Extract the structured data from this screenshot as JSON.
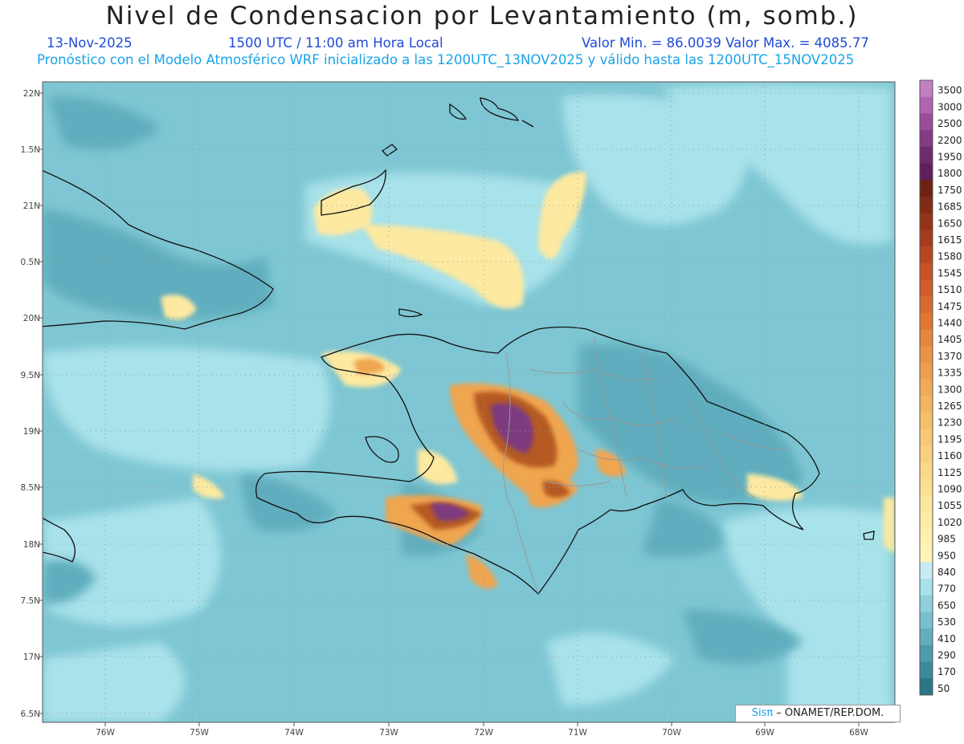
{
  "header": {
    "title": "Nivel de Condensacion por Levantamiento (m, somb.)",
    "date": "13-Nov-2025",
    "time": "1500 UTC / 11:00 am Hora Local",
    "minmax": "Valor Min. = 86.0039  Valor Max. = 4085.77",
    "subtitle": "Pronóstico con el Modelo Atmosférico WRF inicializado a las 1200UTC_13NOV2025 y válido hasta las  1200UTC_15NOV2025"
  },
  "map": {
    "lat_labels": [
      "22N",
      "1.5N",
      "21N",
      "0.5N",
      "20N",
      "9.5N",
      "19N",
      "8.5N",
      "18N",
      "7.5N",
      "17N",
      "6.5N"
    ],
    "lon_labels": [
      "76W",
      "75W",
      "74W",
      "73W",
      "72W",
      "71W",
      "70W",
      "69W",
      "68W"
    ],
    "lon_range": [
      -76.6,
      -67.6
    ],
    "lat_range": [
      16.5,
      22.0
    ]
  },
  "colorbar": {
    "levels": [
      "3500",
      "3000",
      "2500",
      "2200",
      "1950",
      "1800",
      "1750",
      "1685",
      "1650",
      "1615",
      "1580",
      "1545",
      "1510",
      "1475",
      "1440",
      "1405",
      "1370",
      "1335",
      "1300",
      "1265",
      "1230",
      "1195",
      "1160",
      "1125",
      "1090",
      "1055",
      "1020",
      "985",
      "950",
      "840",
      "770",
      "650",
      "530",
      "410",
      "290",
      "170",
      "50"
    ],
    "colors": [
      "#c47fc4",
      "#b064b0",
      "#9a4c98",
      "#853a84",
      "#6e2a6e",
      "#5e1f5c",
      "#6f2212",
      "#812a14",
      "#933318",
      "#a63c1c",
      "#b84620",
      "#c65226",
      "#d05d2a",
      "#d9692f",
      "#e07834",
      "#e6863c",
      "#ea9343",
      "#ee9f4b",
      "#f1ab55",
      "#f3b55f",
      "#f5be69",
      "#f7c773",
      "#f9d07e",
      "#fad888",
      "#fbe092",
      "#fce69c",
      "#fdeca6",
      "#fef0ae",
      "#fff3b5",
      "#c6ecf2",
      "#a8e2ea",
      "#8fd0dc",
      "#79c0cf",
      "#62aebf",
      "#4c9cae",
      "#3a8a9c",
      "#2a7688"
    ]
  },
  "credit": {
    "sis": "Sisπ",
    "rest": " – ONAMET/REP.DOM."
  }
}
